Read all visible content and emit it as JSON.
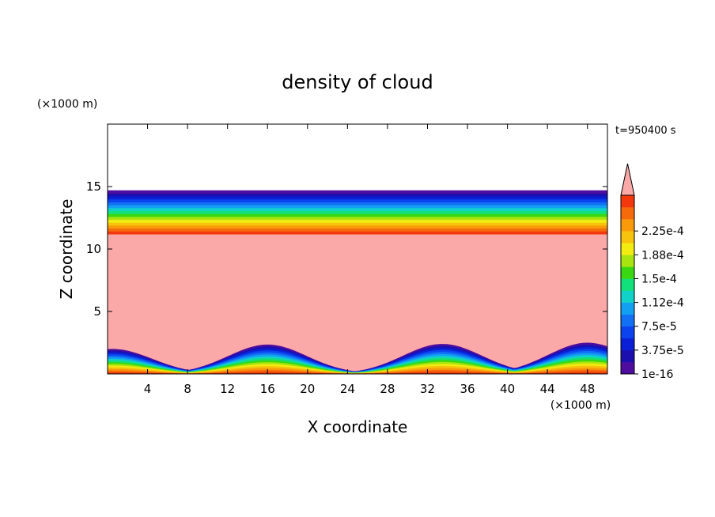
{
  "chart_data": {
    "type": "heatmap",
    "title": "density of cloud",
    "xlabel": "X coordinate",
    "ylabel": "Z coordinate",
    "x_unit": "(×1000 m)",
    "y_unit": "(×1000 m)",
    "time_label": "t=950400 s",
    "x_range": [
      0,
      50
    ],
    "y_range": [
      0,
      20
    ],
    "x_ticks": [
      4,
      8,
      12,
      16,
      20,
      24,
      28,
      32,
      36,
      40,
      44,
      48
    ],
    "y_ticks": [
      5,
      10,
      15
    ],
    "colorbar": {
      "levels": [
        {
          "value": "1e-16",
          "color": "#4f0d9f"
        },
        {
          "value": "",
          "color": "#1c0fb0"
        },
        {
          "value": "3.75e-5",
          "color": "#0a1fd6"
        },
        {
          "value": "",
          "color": "#0b44ee"
        },
        {
          "value": "7.5e-5",
          "color": "#1270f5"
        },
        {
          "value": "",
          "color": "#12a0f2"
        },
        {
          "value": "1.12e-4",
          "color": "#10d2c8"
        },
        {
          "value": "",
          "color": "#12e07a"
        },
        {
          "value": "1.5e-4",
          "color": "#3ad813"
        },
        {
          "value": "",
          "color": "#a8e40f"
        },
        {
          "value": "1.88e-4",
          "color": "#f2ec12"
        },
        {
          "value": "",
          "color": "#f7c30c"
        },
        {
          "value": "2.25e-4",
          "color": "#f89a0a"
        },
        {
          "value": "",
          "color": "#f66a0b"
        },
        {
          "value": "",
          "color": "#f2380c"
        }
      ],
      "over_color": "#fba8a8"
    },
    "fields": {
      "upper_layer_z_range": [
        11.2,
        14.7
      ],
      "saturated_color": "#fba8a8",
      "bottom_band_peaks": [
        {
          "x": 0.5,
          "height": 2.0
        },
        {
          "x": 16,
          "height": 2.35
        },
        {
          "x": 33.5,
          "height": 2.4
        },
        {
          "x": 48,
          "height": 2.5
        }
      ]
    }
  }
}
